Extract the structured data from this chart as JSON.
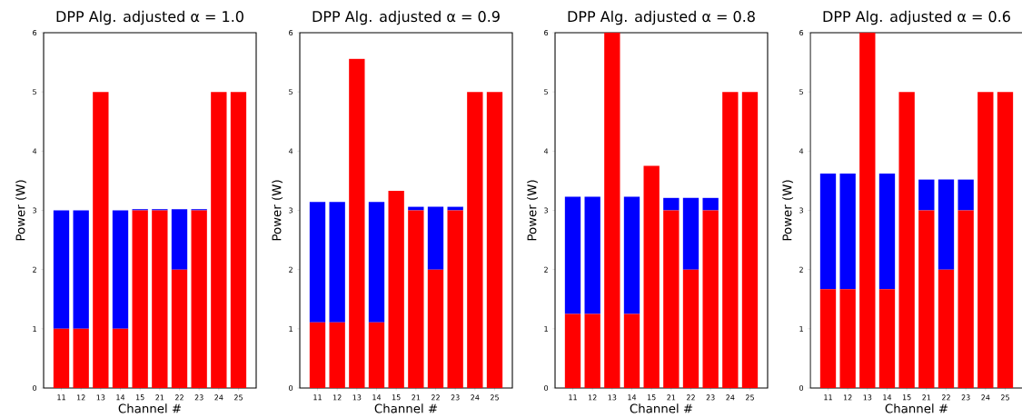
{
  "chart_data": [
    {
      "type": "bar",
      "stacked": true,
      "title": "DPP Alg. adjusted α = 1.0",
      "xlabel": "Channel #",
      "ylabel": "Power (W)",
      "categories": [
        "11",
        "12",
        "13",
        "14",
        "15",
        "21",
        "22",
        "23",
        "24",
        "25"
      ],
      "ylim": [
        0,
        6
      ],
      "yticks": [
        0,
        1,
        2,
        3,
        4,
        5,
        6
      ],
      "series": [
        {
          "color": "#ff0000",
          "values": [
            1,
            1,
            5,
            1,
            3,
            3,
            2,
            3,
            5,
            5
          ]
        },
        {
          "color": "#0000ff",
          "values": [
            2,
            2,
            0,
            2,
            0.02,
            0.02,
            1.02,
            0.02,
            0,
            0
          ]
        }
      ]
    },
    {
      "type": "bar",
      "stacked": true,
      "title": "DPP Alg. adjusted α = 0.9",
      "xlabel": "Channel #",
      "ylabel": "Power (W)",
      "categories": [
        "11",
        "12",
        "13",
        "14",
        "15",
        "21",
        "22",
        "23",
        "24",
        "25"
      ],
      "ylim": [
        0,
        6
      ],
      "yticks": [
        0,
        1,
        2,
        3,
        4,
        5,
        6
      ],
      "series": [
        {
          "color": "#ff0000",
          "values": [
            1.11,
            1.11,
            5.56,
            1.11,
            3.33,
            3,
            2,
            3,
            5,
            5
          ]
        },
        {
          "color": "#0000ff",
          "values": [
            2.03,
            2.03,
            0,
            2.03,
            0,
            0.06,
            1.06,
            0.06,
            0,
            0
          ]
        }
      ]
    },
    {
      "type": "bar",
      "stacked": true,
      "title": "DPP Alg. adjusted α = 0.8",
      "xlabel": "Channel #",
      "ylabel": "Power (W)",
      "categories": [
        "11",
        "12",
        "13",
        "14",
        "15",
        "21",
        "22",
        "23",
        "24",
        "25"
      ],
      "ylim": [
        0,
        6
      ],
      "yticks": [
        0,
        1,
        2,
        3,
        4,
        5,
        6
      ],
      "series": [
        {
          "color": "#ff0000",
          "values": [
            1.25,
            1.25,
            6,
            1.25,
            3.75,
            3,
            2,
            3,
            5,
            5
          ]
        },
        {
          "color": "#0000ff",
          "values": [
            1.98,
            1.98,
            0,
            1.98,
            0,
            0.21,
            1.21,
            0.21,
            0,
            0
          ]
        }
      ]
    },
    {
      "type": "bar",
      "stacked": true,
      "title": "DPP Alg. adjusted α = 0.6",
      "xlabel": "Channel #",
      "ylabel": "Power (W)",
      "categories": [
        "11",
        "12",
        "13",
        "14",
        "15",
        "21",
        "22",
        "23",
        "24",
        "25"
      ],
      "ylim": [
        0,
        6
      ],
      "yticks": [
        0,
        1,
        2,
        3,
        4,
        5,
        6
      ],
      "series": [
        {
          "color": "#ff0000",
          "values": [
            1.67,
            1.67,
            6,
            1.67,
            5,
            3,
            2,
            3,
            5,
            5
          ]
        },
        {
          "color": "#0000ff",
          "values": [
            1.95,
            1.95,
            0,
            1.95,
            0,
            0.52,
            1.52,
            0.52,
            0,
            0
          ]
        }
      ]
    }
  ]
}
